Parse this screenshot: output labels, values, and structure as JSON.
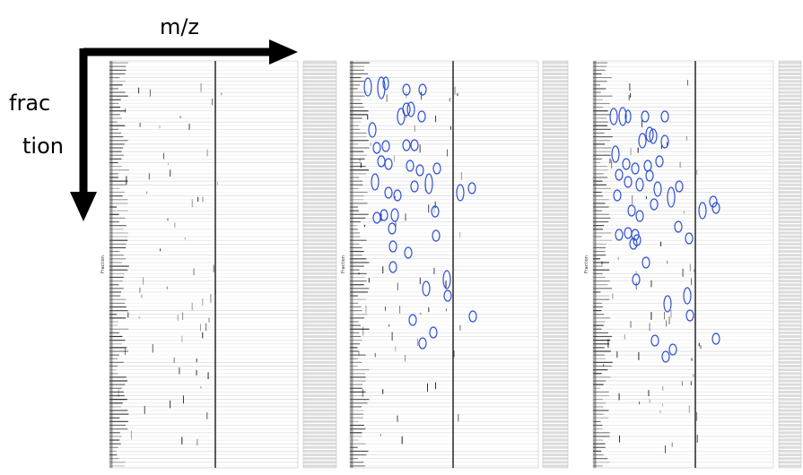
{
  "figure": {
    "x_arrow_label": "m/z",
    "y_arrow_label_lines": [
      "frac",
      "tion"
    ],
    "panels": [
      {
        "y_axis_label": "Fraction"
      },
      {
        "y_axis_label": "Fraction"
      },
      {
        "y_axis_label": "Fraction"
      }
    ]
  }
}
